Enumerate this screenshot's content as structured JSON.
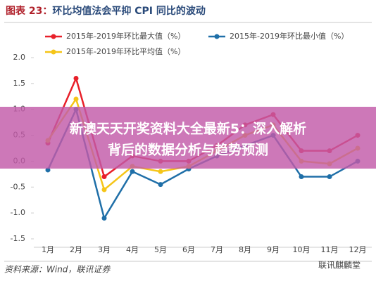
{
  "chart_data": {
    "type": "line",
    "title_label": "图表 23：",
    "title": "环比均值法会平抑 CPI 同比的波动",
    "categories": [
      "1月",
      "2月",
      "3月",
      "4月",
      "5月",
      "6月",
      "7月",
      "8月",
      "9月",
      "10月",
      "11月",
      "12月"
    ],
    "series": [
      {
        "name": "2015年-2019年环比最大值（%）",
        "color": "#e8202a",
        "values": [
          0.35,
          1.6,
          -0.3,
          0.1,
          0.0,
          0.0,
          0.3,
          0.7,
          0.9,
          0.2,
          0.2,
          0.5
        ]
      },
      {
        "name": "2015年-2019年环比最小值（%）",
        "color": "#1f6fa8",
        "values": [
          -0.17,
          1.0,
          -1.1,
          -0.2,
          -0.45,
          -0.15,
          0.1,
          0.3,
          0.5,
          -0.3,
          -0.3,
          0.0
        ]
      },
      {
        "name": "2015年-2019年环比平均值（%）",
        "color": "#f5c518",
        "values": [
          0.4,
          1.2,
          -0.55,
          -0.1,
          -0.2,
          -0.1,
          0.2,
          0.5,
          0.7,
          0.0,
          -0.05,
          0.25
        ]
      }
    ],
    "ylim": [
      -1.5,
      2.0
    ],
    "yticks": [
      {
        "value": 2,
        "label": "2.0"
      },
      1.5,
      {
        "value": 1,
        "label": "1.0"
      },
      0.5,
      {
        "value": 0,
        "label": "0.0"
      },
      -0.5,
      {
        "value": -1,
        "label": "-1.0"
      },
      -1.5
    ],
    "grid": false,
    "source": "资料来源：Wind，联讯证券"
  },
  "overlay": {
    "lines": [
      "新澳天天开奖资料大全最新5：深入解析",
      "背后的数据分析与趋势预测"
    ]
  },
  "watermark": "联讯麒麟堂"
}
